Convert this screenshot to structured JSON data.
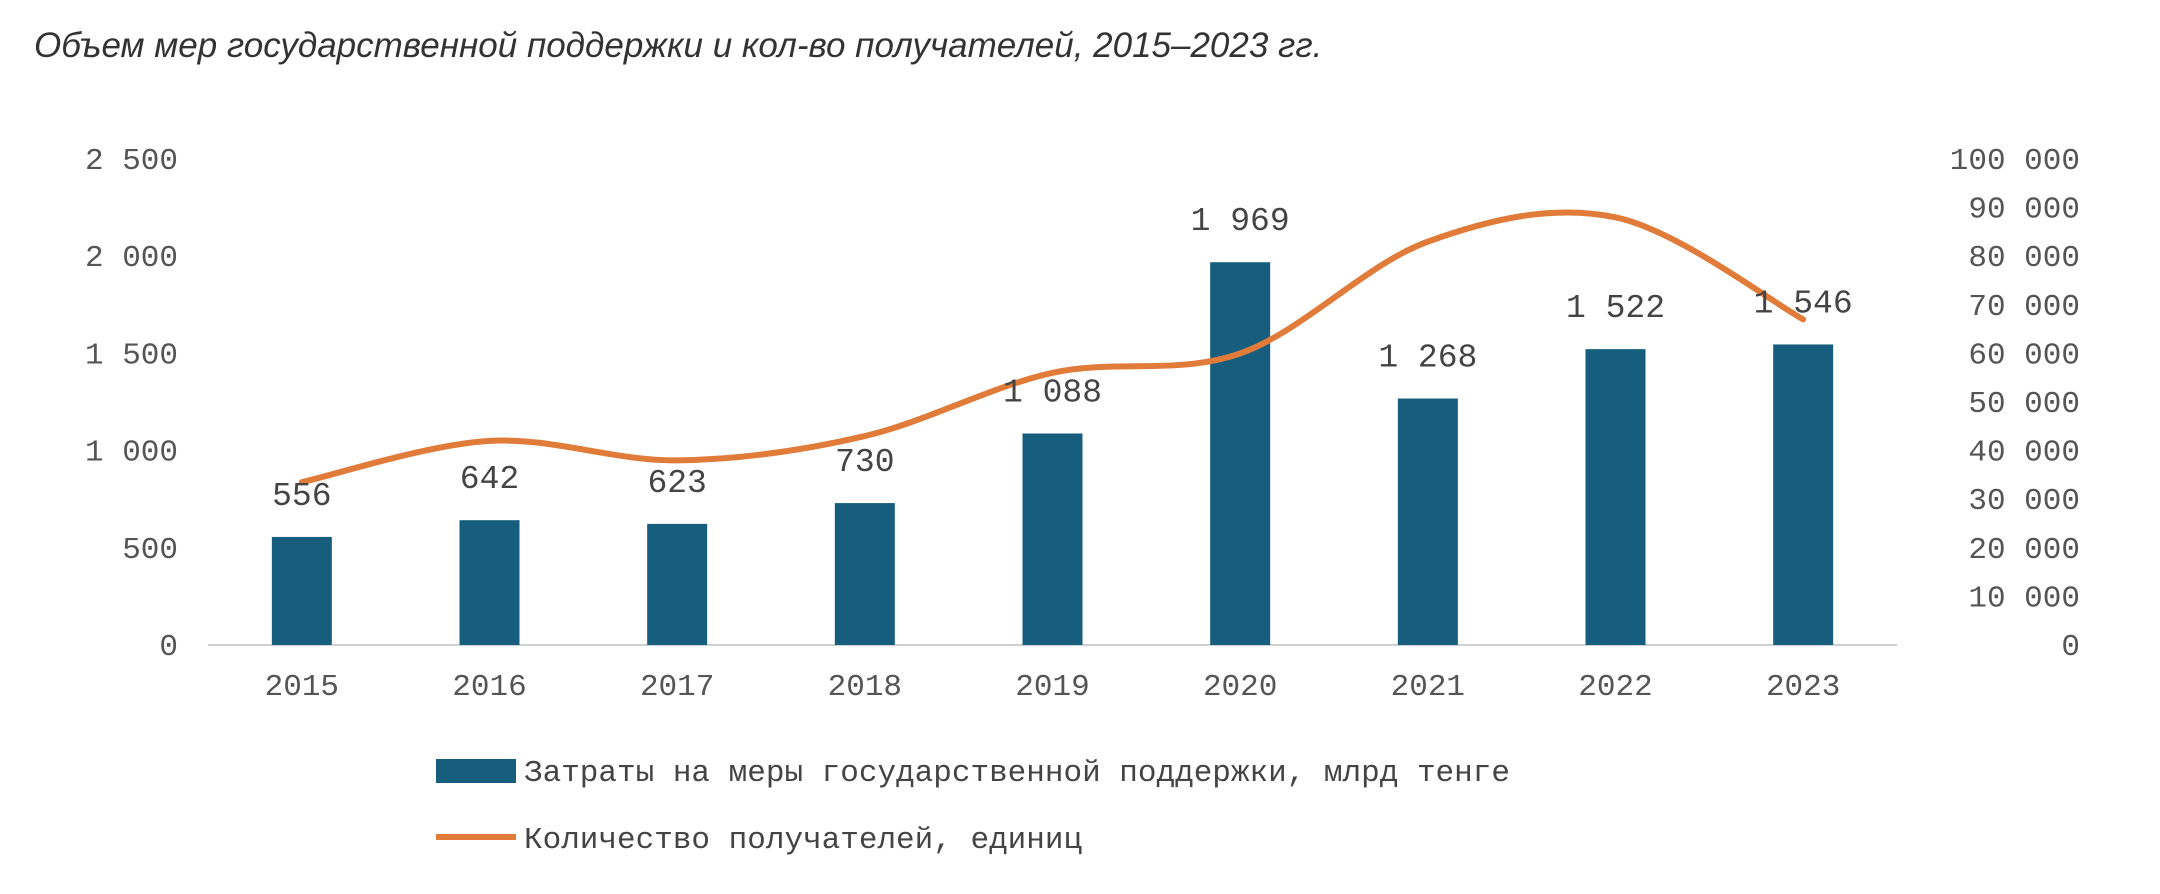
{
  "chart_data": {
    "type": "bar+line",
    "title": "Объем мер государственной поддержки и кол-во получателей, 2015–2023 гг.",
    "categories": [
      "2015",
      "2016",
      "2017",
      "2018",
      "2019",
      "2020",
      "2021",
      "2022",
      "2023"
    ],
    "series": [
      {
        "name": "Затраты на меры государственной поддержки, млрд тенге",
        "type": "bar",
        "axis": "left",
        "color": "#175e7e",
        "values": [
          556,
          642,
          623,
          730,
          1088,
          1969,
          1268,
          1522,
          1546
        ],
        "labels": [
          "556",
          "642",
          "623",
          "730",
          "1 088",
          "1 969",
          "1 268",
          "1 522",
          "1 546"
        ]
      },
      {
        "name": "Количество получателей, единиц",
        "type": "line",
        "axis": "right",
        "color": "#e07b39",
        "smooth": true,
        "values": [
          33500,
          42000,
          38000,
          43000,
          56000,
          60000,
          83000,
          88000,
          67000
        ]
      }
    ],
    "left_axis": {
      "ylim": [
        0,
        2500
      ],
      "ticks": [
        "0",
        "500",
        "1 000",
        "1 500",
        "2 000",
        "2 500"
      ]
    },
    "right_axis": {
      "ylim": [
        0,
        100000
      ],
      "ticks": [
        "0",
        "10 000",
        "20 000",
        "30 000",
        "40 000",
        "50 000",
        "60 000",
        "70 000",
        "80 000",
        "90 000",
        "100 000"
      ]
    },
    "grid": false,
    "legend": "bottom"
  }
}
